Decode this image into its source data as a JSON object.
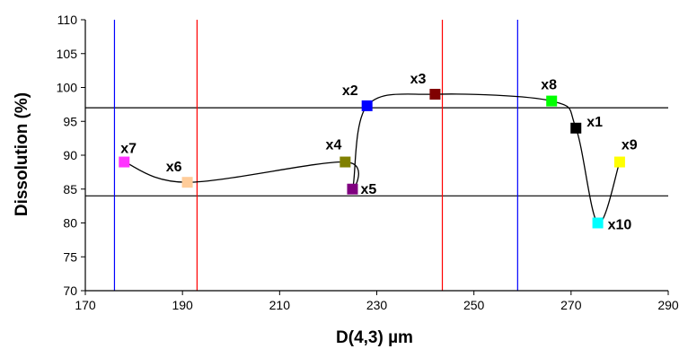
{
  "chart_data": {
    "type": "scatter",
    "title": "",
    "xlabel": "D(4,3) µm",
    "ylabel": "Dissolution  (%)",
    "xlim": [
      170,
      290
    ],
    "ylim": [
      70,
      110
    ],
    "xticks": [
      170,
      190,
      210,
      230,
      250,
      270,
      290
    ],
    "yticks": [
      70,
      75,
      80,
      85,
      90,
      95,
      100,
      105,
      110
    ],
    "grid": false,
    "points": [
      {
        "label": "x7",
        "x": 178,
        "y": 89,
        "color": "#ff33ff"
      },
      {
        "label": "x6",
        "x": 191,
        "y": 86,
        "color": "#ffcc99"
      },
      {
        "label": "x4",
        "x": 223.5,
        "y": 89,
        "color": "#808000"
      },
      {
        "label": "x5",
        "x": 225,
        "y": 85,
        "color": "#800080"
      },
      {
        "label": "x2",
        "x": 228,
        "y": 97.3,
        "color": "#0000ff"
      },
      {
        "label": "x3",
        "x": 242,
        "y": 99,
        "color": "#800000"
      },
      {
        "label": "x8",
        "x": 266,
        "y": 98,
        "color": "#00ff00"
      },
      {
        "label": "x1",
        "x": 271,
        "y": 94,
        "color": "#000000"
      },
      {
        "label": "x10",
        "x": 275.5,
        "y": 80,
        "color": "#00ffff"
      },
      {
        "label": "x9",
        "x": 280,
        "y": 89,
        "color": "#ffff00"
      }
    ],
    "curve_order": [
      "x7",
      "x6",
      "x4",
      "x5",
      "x2",
      "x3",
      "x8",
      "x1",
      "x10",
      "x9"
    ],
    "reference_lines": {
      "horizontal": [
        {
          "y": 97,
          "color": "#000000"
        },
        {
          "y": 84,
          "color": "#000000"
        }
      ],
      "vertical": [
        {
          "x": 176,
          "color": "#0000ff"
        },
        {
          "x": 193,
          "color": "#ff0000"
        },
        {
          "x": 243.5,
          "color": "#ff0000"
        },
        {
          "x": 259,
          "color": "#0000ff"
        }
      ]
    }
  }
}
